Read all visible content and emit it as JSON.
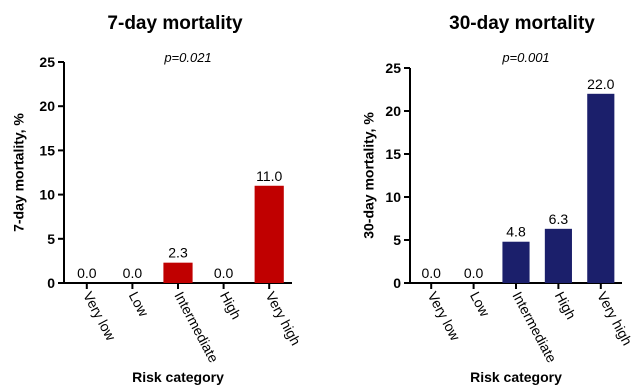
{
  "chart_data": [
    {
      "type": "bar",
      "title": "7-day mortality",
      "subtitle": "p=0.021",
      "x_label": "Risk category",
      "y_label": "7-day mortality, %",
      "categories": [
        "Very low",
        "Low",
        "Intermediate",
        "High",
        "Very high"
      ],
      "values": [
        0.0,
        0.0,
        2.3,
        0.0,
        11.0
      ],
      "value_labels": [
        "0.0",
        "0.0",
        "2.3",
        "0.0",
        "11.0"
      ],
      "color": "#c00000",
      "ylim": [
        0,
        25
      ],
      "yticks": [
        0,
        5,
        10,
        15,
        20,
        25
      ]
    },
    {
      "type": "bar",
      "title": "30-day mortality",
      "subtitle": "p=0.001",
      "x_label": "Risk category",
      "y_label": "30-day mortality, %",
      "categories": [
        "Very low",
        "Low",
        "Intermediate",
        "High",
        "Very high"
      ],
      "values": [
        0.0,
        0.0,
        4.8,
        6.3,
        22.0
      ],
      "value_labels": [
        "0.0",
        "0.0",
        "4.8",
        "6.3",
        "22.0"
      ],
      "color": "#1b1f6b",
      "ylim": [
        0,
        25
      ],
      "yticks": [
        0,
        5,
        10,
        15,
        20,
        25
      ]
    }
  ]
}
